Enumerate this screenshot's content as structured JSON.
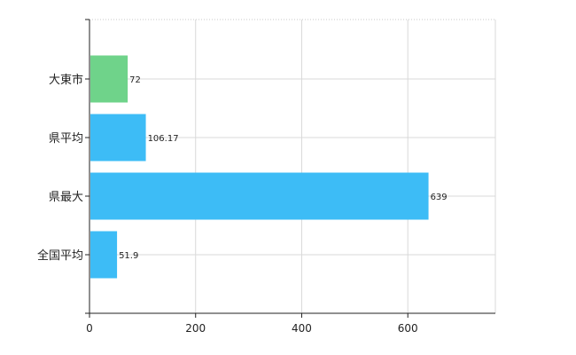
{
  "chart_data": {
    "type": "bar",
    "orientation": "horizontal",
    "categories": [
      "大東市",
      "県平均",
      "県最大",
      "全国平均"
    ],
    "values": [
      72,
      106.17,
      639,
      51.9
    ],
    "value_labels": [
      "72",
      "106.17",
      "639",
      "51.9"
    ],
    "bar_colors": [
      "#6fd38a",
      "#3dbcf6",
      "#3dbcf6",
      "#3dbcf6"
    ],
    "xlim": [
      0,
      765
    ],
    "x_ticks": [
      0,
      200,
      400,
      600
    ],
    "x_tick_labels": [
      "0",
      "200",
      "400",
      "600"
    ],
    "grid": true,
    "legend": "none",
    "title": "",
    "xlabel": "",
    "ylabel": ""
  }
}
